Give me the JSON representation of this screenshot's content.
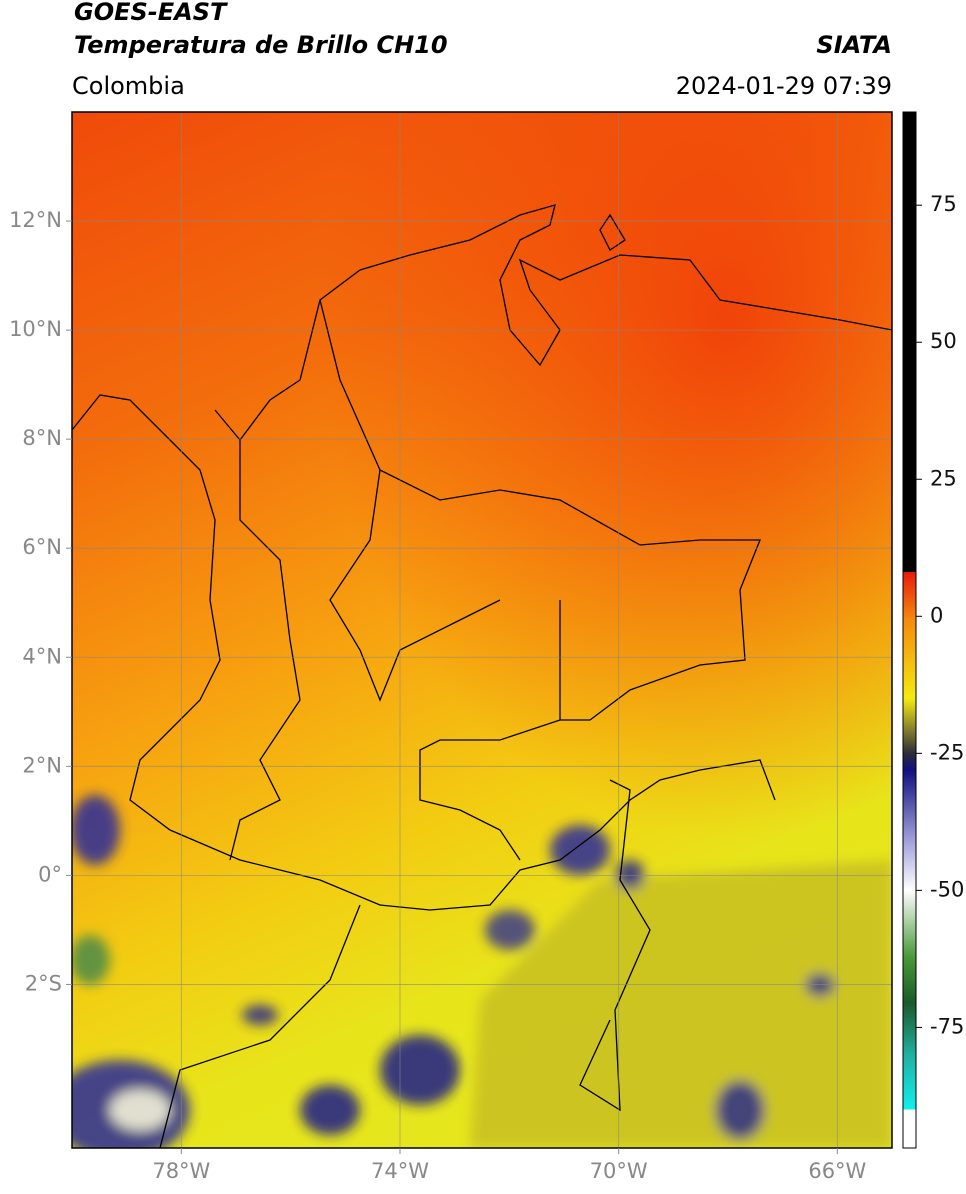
{
  "header": {
    "title": "GOES-EAST",
    "subtitle": "Temperatura de Brillo CH10",
    "source": "SIATA",
    "region": "Colombia",
    "datetime": "2024-01-29 07:39"
  },
  "map": {
    "xlim": [
      -80,
      -65
    ],
    "ylim": [
      -5,
      14
    ],
    "xticks": [
      {
        "value": -78,
        "label": "78°W"
      },
      {
        "value": -74,
        "label": "74°W"
      },
      {
        "value": -70,
        "label": "70°W"
      },
      {
        "value": -66,
        "label": "66°W"
      }
    ],
    "yticks": [
      {
        "value": 12,
        "label": "12°N"
      },
      {
        "value": 10,
        "label": "10°N"
      },
      {
        "value": 8,
        "label": "8°N"
      },
      {
        "value": 6,
        "label": "6°N"
      },
      {
        "value": 4,
        "label": "4°N"
      },
      {
        "value": 2,
        "label": "2°N"
      },
      {
        "value": 0,
        "label": "0°"
      },
      {
        "value": -2,
        "label": "2°S"
      }
    ],
    "grid": true
  },
  "colorbar": {
    "clim": [
      -97,
      92
    ],
    "ticks": [
      75,
      50,
      25,
      0,
      -25,
      -50,
      -75
    ]
  }
}
